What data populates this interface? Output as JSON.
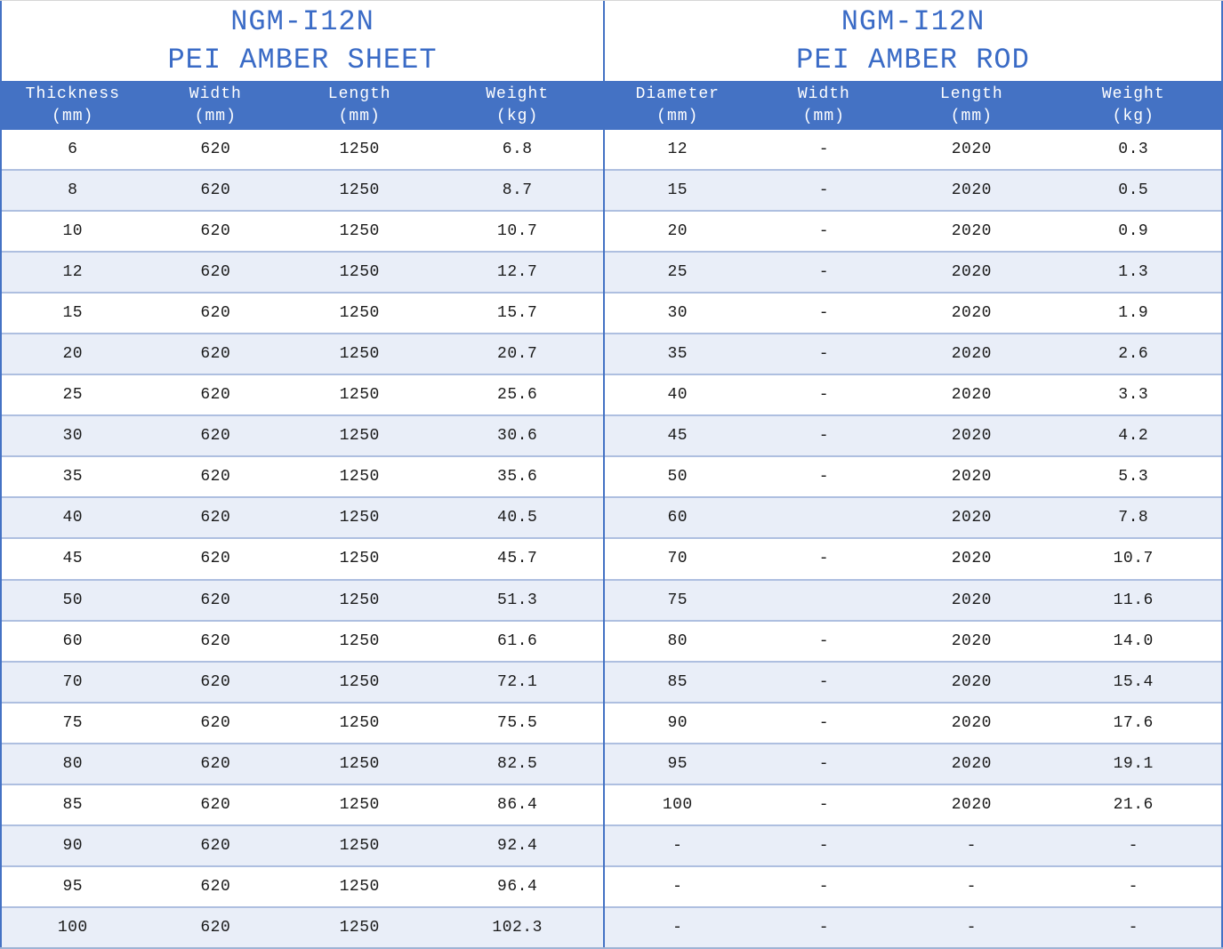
{
  "colors": {
    "header_band": "#4472c4",
    "title_text": "#3a6bc6",
    "alt_row": "#e9eef8",
    "row_border": "#aebfe0",
    "body_text": "#1a1a1a"
  },
  "tables": [
    {
      "title_line1": "NGM-I12N",
      "title_line2": "PEI AMBER SHEET",
      "columns": [
        {
          "label": "Thickness",
          "unit": "(mm)"
        },
        {
          "label": "Width",
          "unit": "(mm)"
        },
        {
          "label": "Length",
          "unit": "(mm)"
        },
        {
          "label": "Weight",
          "unit": "(kg)"
        }
      ],
      "rows": [
        [
          "6",
          "620",
          "1250",
          "6.8"
        ],
        [
          "8",
          "620",
          "1250",
          "8.7"
        ],
        [
          "10",
          "620",
          "1250",
          "10.7"
        ],
        [
          "12",
          "620",
          "1250",
          "12.7"
        ],
        [
          "15",
          "620",
          "1250",
          "15.7"
        ],
        [
          "20",
          "620",
          "1250",
          "20.7"
        ],
        [
          "25",
          "620",
          "1250",
          "25.6"
        ],
        [
          "30",
          "620",
          "1250",
          "30.6"
        ],
        [
          "35",
          "620",
          "1250",
          "35.6"
        ],
        [
          "40",
          "620",
          "1250",
          "40.5"
        ],
        [
          "45",
          "620",
          "1250",
          "45.7"
        ],
        [
          "50",
          "620",
          "1250",
          "51.3"
        ],
        [
          "60",
          "620",
          "1250",
          "61.6"
        ],
        [
          "70",
          "620",
          "1250",
          "72.1"
        ],
        [
          "75",
          "620",
          "1250",
          "75.5"
        ],
        [
          "80",
          "620",
          "1250",
          "82.5"
        ],
        [
          "85",
          "620",
          "1250",
          "86.4"
        ],
        [
          "90",
          "620",
          "1250",
          "92.4"
        ],
        [
          "95",
          "620",
          "1250",
          "96.4"
        ],
        [
          "100",
          "620",
          "1250",
          "102.3"
        ]
      ]
    },
    {
      "title_line1": "NGM-I12N",
      "title_line2": "PEI AMBER ROD",
      "columns": [
        {
          "label": "Diameter",
          "unit": "(mm)"
        },
        {
          "label": "Width",
          "unit": "(mm)"
        },
        {
          "label": "Length",
          "unit": "(mm)"
        },
        {
          "label": "Weight",
          "unit": "(kg)"
        }
      ],
      "rows": [
        [
          "12",
          "-",
          "2020",
          "0.3"
        ],
        [
          "15",
          "-",
          "2020",
          "0.5"
        ],
        [
          "20",
          "-",
          "2020",
          "0.9"
        ],
        [
          "25",
          "-",
          "2020",
          "1.3"
        ],
        [
          "30",
          "-",
          "2020",
          "1.9"
        ],
        [
          "35",
          "-",
          "2020",
          "2.6"
        ],
        [
          "40",
          "-",
          "2020",
          "3.3"
        ],
        [
          "45",
          "-",
          "2020",
          "4.2"
        ],
        [
          "50",
          "-",
          "2020",
          "5.3"
        ],
        [
          "60",
          "",
          "2020",
          "7.8"
        ],
        [
          "70",
          "-",
          "2020",
          "10.7"
        ],
        [
          "75",
          "",
          "2020",
          "11.6"
        ],
        [
          "80",
          "-",
          "2020",
          "14.0"
        ],
        [
          "85",
          "-",
          "2020",
          "15.4"
        ],
        [
          "90",
          "-",
          "2020",
          "17.6"
        ],
        [
          "95",
          "-",
          "2020",
          "19.1"
        ],
        [
          "100",
          "-",
          "2020",
          "21.6"
        ],
        [
          "-",
          "-",
          "-",
          "-"
        ],
        [
          "-",
          "-",
          "-",
          "-"
        ],
        [
          "-",
          "-",
          "-",
          "-"
        ]
      ]
    }
  ]
}
